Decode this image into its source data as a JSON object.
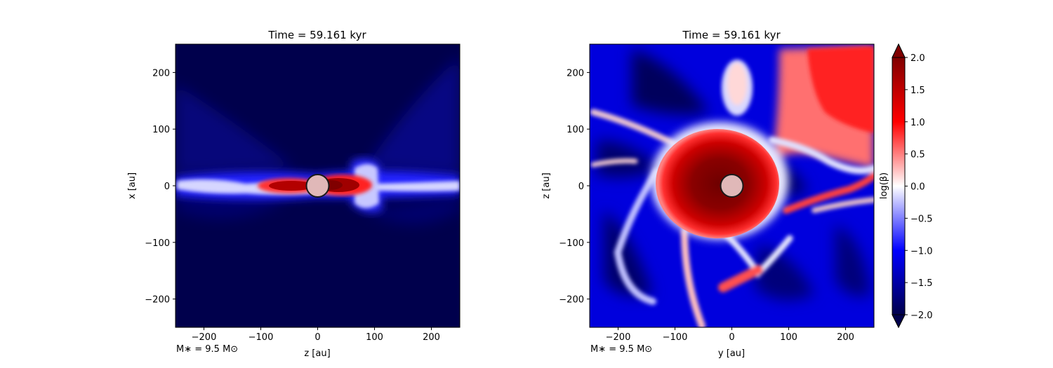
{
  "colorbar": {
    "label": "log(β)",
    "ticks": [
      2.0,
      1.5,
      1.0,
      0.5,
      0.0,
      -0.5,
      -1.0,
      -1.5,
      -2.0
    ],
    "range": [
      -2.0,
      2.0
    ],
    "colormap": "seismic"
  },
  "colors": {
    "low": "#00004c",
    "mid": "#ffffff",
    "high": "#800000"
  },
  "chart_data": [
    {
      "type": "heatmap",
      "title": "Time = 59.161 kyr",
      "xlabel": "z [au]",
      "ylabel": "x [au]",
      "xlim": [
        -250,
        250
      ],
      "ylim": [
        -250,
        250
      ],
      "xticks": [
        -200,
        -100,
        0,
        100,
        200
      ],
      "yticks": [
        -200,
        -100,
        0,
        100,
        200
      ],
      "annotation": "M∗ = 9.5 M⊙",
      "sink_particle": {
        "x": 0,
        "y": 0,
        "radius_au": 20
      }
    },
    {
      "type": "heatmap",
      "title": "Time = 59.161 kyr",
      "xlabel": "y [au]",
      "ylabel": "z [au]",
      "xlim": [
        -250,
        250
      ],
      "ylim": [
        -250,
        250
      ],
      "xticks": [
        -200,
        -100,
        0,
        100,
        200
      ],
      "yticks": [
        -200,
        -100,
        0,
        100,
        200
      ],
      "annotation": "M∗ = 9.5 M⊙",
      "sink_particle": {
        "x": 0,
        "y": 0,
        "radius_au": 20
      }
    }
  ]
}
